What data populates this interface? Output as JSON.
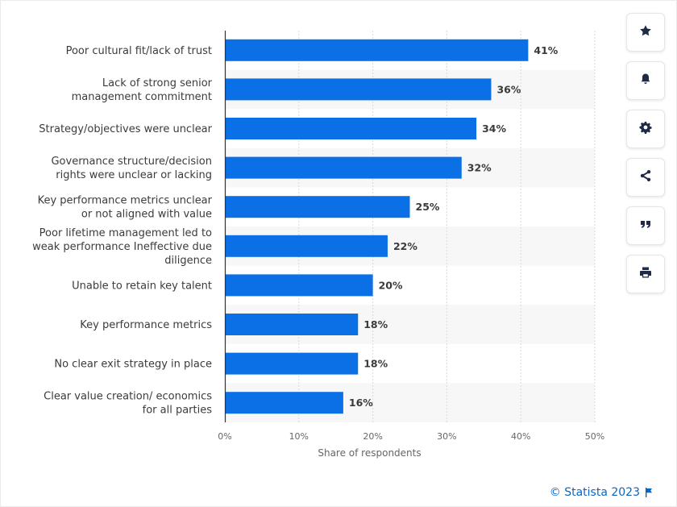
{
  "chart_data": {
    "type": "bar",
    "orientation": "horizontal",
    "categories": [
      [
        "Poor cultural fit/lack of trust"
      ],
      [
        "Lack of strong senior",
        "management commitment"
      ],
      [
        "Strategy/objectives were unclear"
      ],
      [
        "Governance structure/decision",
        "rights were unclear or lacking"
      ],
      [
        "Key performance metrics unclear",
        "or not aligned with value"
      ],
      [
        "Poor lifetime management led to",
        "weak performance Ineffective due",
        "diligence"
      ],
      [
        "Unable to retain key talent"
      ],
      [
        "Key performance metrics"
      ],
      [
        "No clear exit strategy in place"
      ],
      [
        "Clear value creation/ economics",
        "for all parties"
      ]
    ],
    "values": [
      41,
      36,
      34,
      32,
      25,
      22,
      20,
      18,
      18,
      16
    ],
    "value_labels": [
      "41%",
      "36%",
      "34%",
      "32%",
      "25%",
      "22%",
      "20%",
      "18%",
      "18%",
      "16%"
    ],
    "xlim": [
      0,
      50
    ],
    "ticks": [
      0,
      10,
      20,
      30,
      40,
      50
    ],
    "tick_labels": [
      "0%",
      "10%",
      "20%",
      "30%",
      "40%",
      "50%"
    ],
    "xlabel": "Share of respondents",
    "grid": true,
    "bar_color": "#0b6fe6"
  },
  "toolbar": {
    "buttons": [
      {
        "name": "favorite-button",
        "icon": "star-icon"
      },
      {
        "name": "notification-button",
        "icon": "bell-icon"
      },
      {
        "name": "settings-button",
        "icon": "gear-icon"
      },
      {
        "name": "share-button",
        "icon": "share-icon"
      },
      {
        "name": "cite-button",
        "icon": "quote-icon"
      },
      {
        "name": "print-button",
        "icon": "printer-icon"
      }
    ]
  },
  "footer": {
    "credit": "© Statista 2023"
  }
}
